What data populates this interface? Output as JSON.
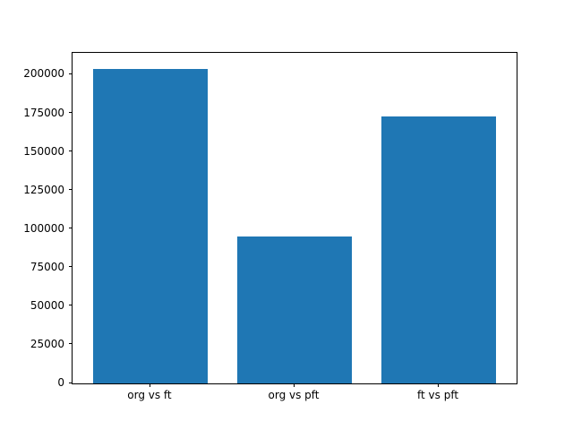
{
  "chart_data": {
    "type": "bar",
    "categories": [
      "org vs ft",
      "org vs pft",
      "ft vs pft"
    ],
    "values": [
      204000,
      95000,
      173000
    ],
    "title": "",
    "xlabel": "",
    "ylabel": "",
    "ylim": [
      0,
      214200
    ],
    "yticks": [
      0,
      25000,
      50000,
      75000,
      100000,
      125000,
      150000,
      175000,
      200000
    ],
    "bar_color": "#1f77b4",
    "legend": null,
    "grid": false
  }
}
